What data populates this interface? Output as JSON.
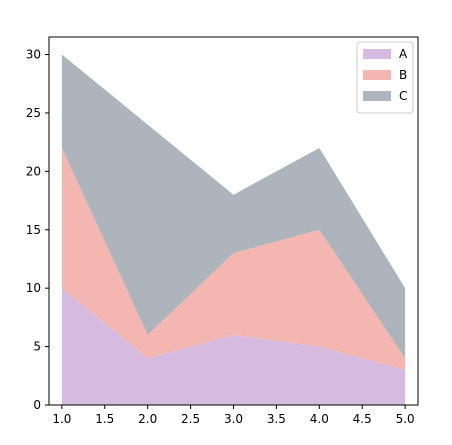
{
  "chart_data": {
    "type": "area",
    "stacked": true,
    "x": [
      1.0,
      2.0,
      3.0,
      4.0,
      5.0
    ],
    "series": [
      {
        "name": "A",
        "values": [
          10,
          4,
          6,
          5,
          3
        ],
        "color": "#d6badf"
      },
      {
        "name": "B",
        "values": [
          12,
          2,
          7,
          10,
          1
        ],
        "color": "#f4b6b0"
      },
      {
        "name": "C",
        "values": [
          8,
          18,
          5,
          7,
          6
        ],
        "color": "#adb4bc"
      }
    ],
    "xlim": [
      0.85,
      5.15
    ],
    "ylim": [
      0,
      31.5
    ],
    "x_ticks": [
      "1.0",
      "1.5",
      "2.0",
      "2.5",
      "3.0",
      "3.5",
      "4.0",
      "4.5",
      "5.0"
    ],
    "x_tick_values": [
      1.0,
      1.5,
      2.0,
      2.5,
      3.0,
      3.5,
      4.0,
      4.5,
      5.0
    ],
    "y_ticks": [
      "0",
      "5",
      "10",
      "15",
      "20",
      "25",
      "30"
    ],
    "y_tick_values": [
      0,
      5,
      10,
      15,
      20,
      25,
      30
    ],
    "title": "",
    "xlabel": "",
    "ylabel": "",
    "grid": false,
    "legend_position": "top-right"
  }
}
